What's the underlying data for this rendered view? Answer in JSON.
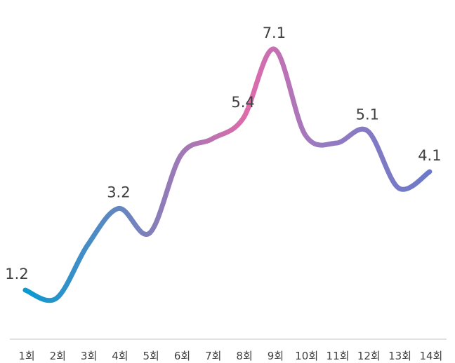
{
  "chart_data": {
    "type": "line",
    "categories": [
      "1회",
      "2회",
      "3회",
      "4회",
      "5회",
      "6회",
      "7회",
      "8회",
      "9회",
      "10회",
      "11회",
      "12회",
      "13회",
      "14회"
    ],
    "series": [
      {
        "values": [
          1.2,
          1.0,
          2.3,
          3.2,
          2.6,
          4.5,
          4.9,
          5.4,
          7.1,
          5.0,
          4.8,
          5.1,
          3.7,
          4.1
        ]
      }
    ],
    "data_labels": [
      {
        "index": 0,
        "text": "1.2"
      },
      {
        "index": 3,
        "text": "3.2"
      },
      {
        "index": 7,
        "text": "5.4"
      },
      {
        "index": 8,
        "text": "7.1"
      },
      {
        "index": 11,
        "text": "5.1"
      },
      {
        "index": 13,
        "text": "4.1"
      }
    ],
    "line_colors": [
      "#0a9ad0",
      "#e06aaa",
      "#9a7ac0",
      "#6a7ac8"
    ],
    "axis_color": "#d9d9d9",
    "ylim": [
      0,
      7.5
    ],
    "grid": false,
    "legend": "none",
    "xlabel": "",
    "ylabel": "",
    "title": ""
  }
}
